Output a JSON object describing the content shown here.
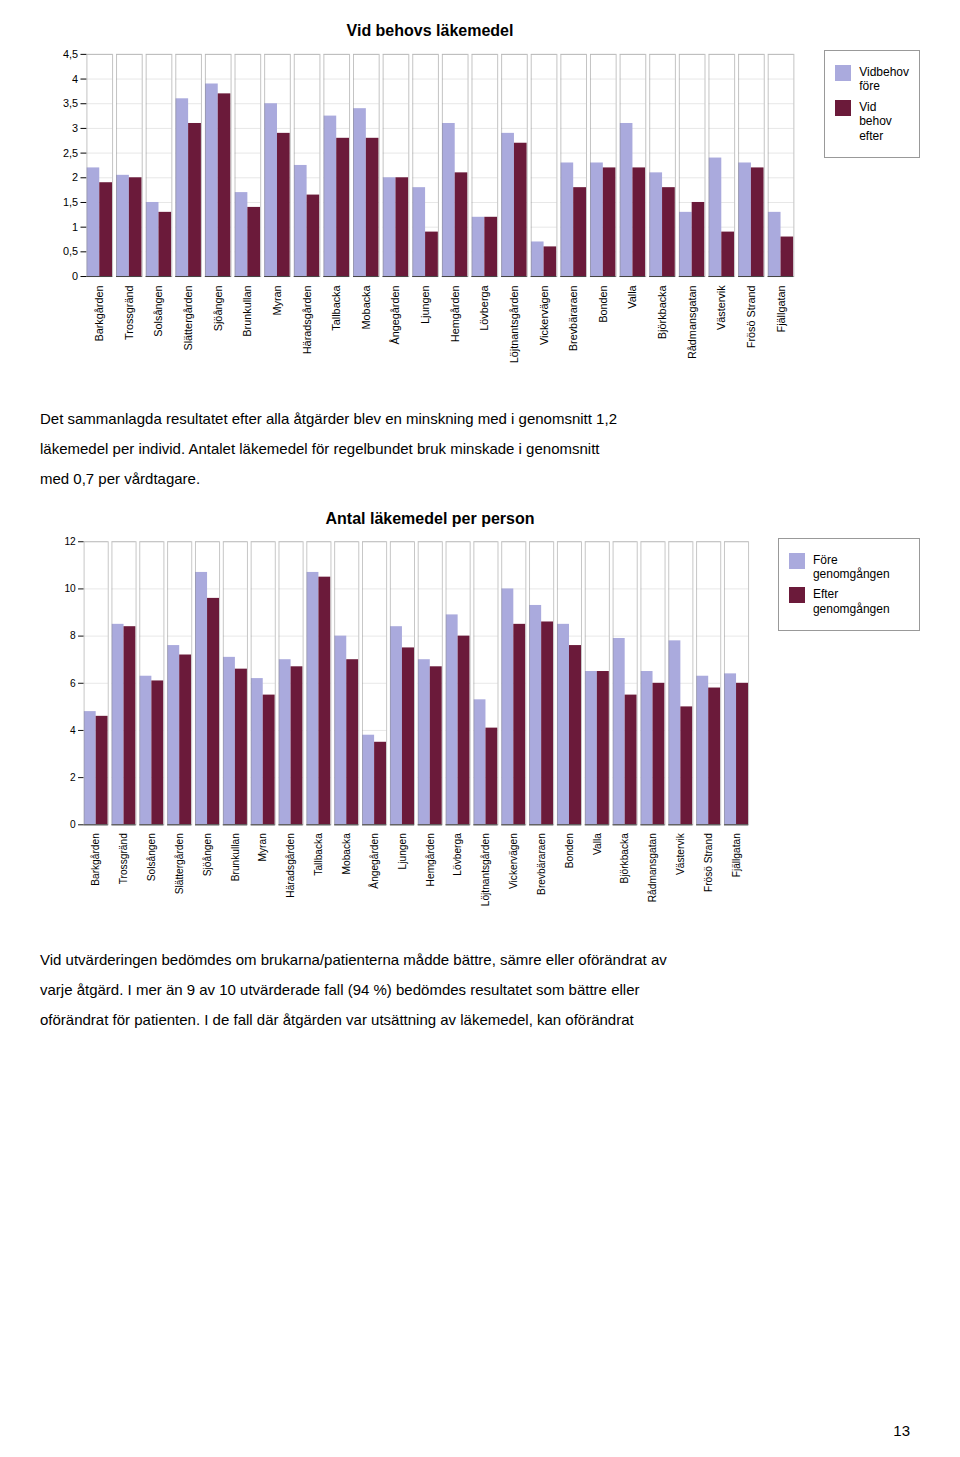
{
  "chart_data": [
    {
      "type": "bar",
      "title": "Vid behovs läkemedel",
      "categories": [
        "Barkgården",
        "Trossgränd",
        "Solsången",
        "Slättergården",
        "Sjöången",
        "Brunkullan",
        "Myran",
        "Häradsgården",
        "Tallbacka",
        "Mobacka",
        "Ångegården",
        "Ljungen",
        "Hemgården",
        "Lövberga",
        "Löjtnantsgården",
        "Vickervägen",
        "Brevbäraraen",
        "Bonden",
        "Valla",
        "Björkbacka",
        "Rådmansgatan",
        "Västervik",
        "Frösö Strand",
        "Fjällgatan"
      ],
      "series": [
        {
          "name": "Vidbehov\nföre",
          "color": "#AAAADD",
          "values": [
            2.2,
            2.05,
            1.5,
            3.6,
            3.9,
            1.7,
            3.5,
            2.25,
            3.25,
            3.4,
            2.0,
            1.8,
            3.1,
            1.2,
            2.9,
            0.7,
            2.3,
            2.3,
            3.1,
            2.1,
            1.3,
            2.4,
            2.3,
            1.3
          ]
        },
        {
          "name": "Vid\nbehov\nefter",
          "color": "#6B1A3A",
          "values": [
            1.9,
            2.0,
            1.3,
            3.1,
            3.7,
            1.4,
            2.9,
            1.65,
            2.8,
            2.8,
            2.0,
            0.9,
            2.1,
            1.2,
            2.7,
            0.6,
            1.8,
            2.2,
            2.2,
            1.8,
            1.5,
            0.9,
            2.2,
            0.8
          ]
        }
      ],
      "ylim": [
        0,
        4.5
      ],
      "yticks": [
        0,
        {
          "value": 0.5,
          "label": "0,5"
        },
        1,
        {
          "value": 1.5,
          "label": "1,5"
        },
        2,
        {
          "value": 2.5,
          "label": "2,5"
        },
        3,
        {
          "value": 3.5,
          "label": "3,5"
        },
        4,
        {
          "value": 4.5,
          "label": "4,5"
        }
      ],
      "grid": true,
      "legend": "right"
    },
    {
      "type": "bar",
      "title": "Antal läkemedel per person",
      "categories": [
        "Barkgården",
        "Trossgränd",
        "Solsången",
        "Slättergården",
        "Sjöången",
        "Brunkullan",
        "Myran",
        "Häradsgården",
        "Tallbacka",
        "Mobacka",
        "Ångegården",
        "Ljungen",
        "Hemgården",
        "Lövberga",
        "Löjtnantsgården",
        "Vickervägen",
        "Brevbäraraen",
        "Bonden",
        "Valla",
        "Björkbacka",
        "Rådmansgatan",
        "Västervik",
        "Frösö Strand",
        "Fjällgatan"
      ],
      "series": [
        {
          "name": "Före genomgången",
          "color": "#AAAADD",
          "values": [
            4.8,
            8.5,
            6.3,
            7.6,
            10.7,
            7.1,
            6.2,
            7.0,
            10.7,
            8.0,
            3.8,
            8.4,
            7.0,
            8.9,
            5.3,
            10.0,
            9.3,
            8.5,
            6.5,
            7.9,
            6.5,
            7.8,
            6.3,
            6.4
          ]
        },
        {
          "name": "Efter genomgången",
          "color": "#6B1A3A",
          "values": [
            4.6,
            8.4,
            6.1,
            7.2,
            9.6,
            6.6,
            5.5,
            6.7,
            10.5,
            7.0,
            3.5,
            7.5,
            6.7,
            8.0,
            4.1,
            8.5,
            8.6,
            7.6,
            6.5,
            5.5,
            6.0,
            5.0,
            5.8,
            6.0
          ]
        }
      ],
      "ylim": [
        0,
        12
      ],
      "yticks": [
        0,
        2,
        4,
        6,
        8,
        10,
        12
      ],
      "grid": true,
      "legend": "right"
    }
  ],
  "paragraph": [
    "Det sammanlagda resultatet efter alla åtgärder blev en minskning med i genomsnitt 1,2",
    "läkemedel per individ. Antalet läkemedel för regelbundet bruk minskade i genomsnitt",
    "med 0,7 per vårdtagare."
  ],
  "bottom_text": [
    "Vid utvärderingen bedömdes om brukarna/patienterna mådde bättre, sämre eller oförändrat av",
    "varje åtgärd. I mer än 9 av 10 utvärderade fall (94 %) bedömdes resultatet som bättre eller",
    "oförändrat för patienten. I de fall där åtgärden var utsättning av läkemedel, kan oförändrat"
  ],
  "page_number": "13"
}
